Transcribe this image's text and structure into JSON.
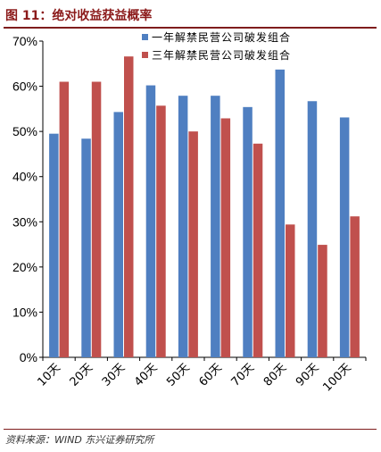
{
  "header": {
    "title": "图 11：绝对收益获益概率"
  },
  "footer": {
    "source": "资料来源：WIND 东兴证券研究所"
  },
  "colors": {
    "series1": "#4f7fc1",
    "series2": "#c0504d",
    "title": "#8b1a1a",
    "rule": "#7f1d1d"
  },
  "chart_data": {
    "type": "bar",
    "categories": [
      "10天",
      "20天",
      "30天",
      "40天",
      "50天",
      "60天",
      "70天",
      "80天",
      "90天",
      "100天"
    ],
    "series": [
      {
        "name": "一年解禁民营公司破发组合",
        "values": [
          49.5,
          48.4,
          54.3,
          60.2,
          57.9,
          57.9,
          55.4,
          63.7,
          56.7,
          53.1
        ]
      },
      {
        "name": "三年解禁民营公司破发组合",
        "values": [
          61.0,
          61.0,
          66.6,
          55.7,
          50.0,
          52.9,
          47.3,
          29.4,
          24.9,
          31.2
        ]
      }
    ],
    "y_ticks": [
      "0%",
      "10%",
      "20%",
      "30%",
      "40%",
      "50%",
      "60%",
      "70%"
    ],
    "ylim": [
      0,
      70
    ],
    "grid": false,
    "legend_position": "top-right"
  }
}
